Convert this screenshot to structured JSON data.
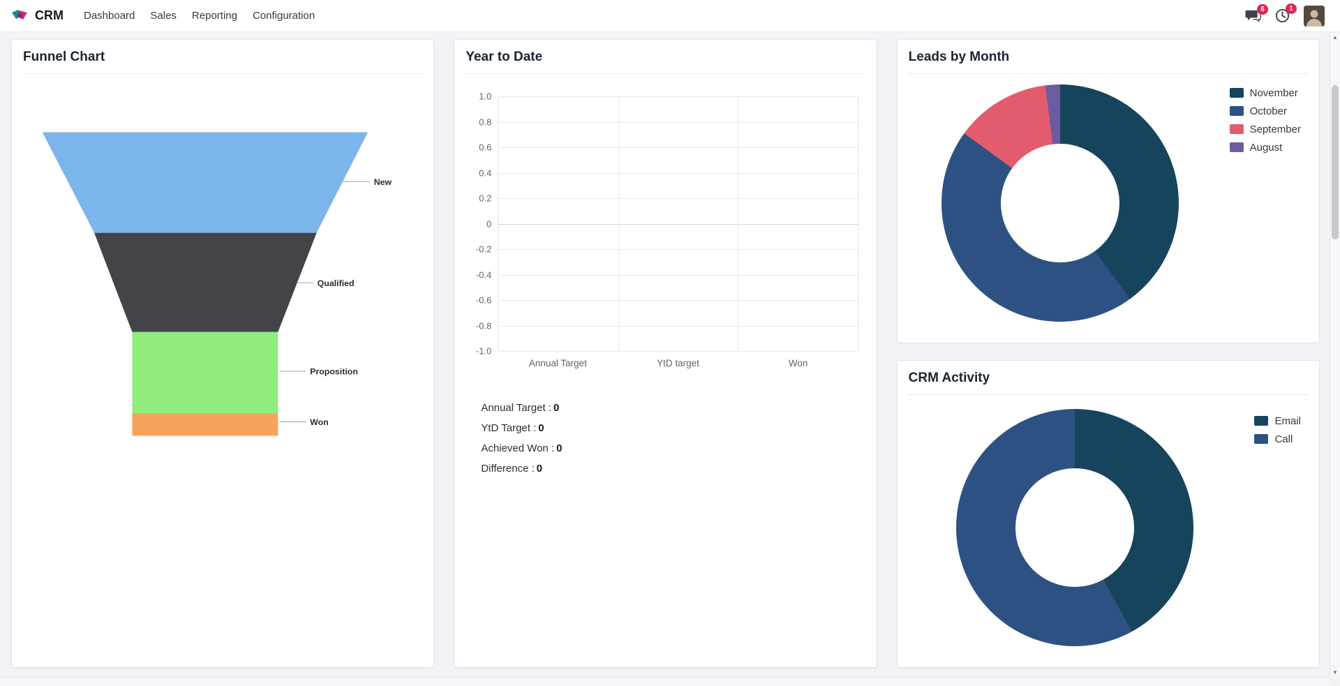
{
  "navbar": {
    "app_name": "CRM",
    "menu": [
      {
        "label": "Dashboard"
      },
      {
        "label": "Sales"
      },
      {
        "label": "Reporting"
      },
      {
        "label": "Configuration"
      }
    ],
    "messages_badge": "6",
    "activities_badge": "1"
  },
  "cards": {
    "funnel": {
      "title": "Funnel Chart",
      "stages": [
        {
          "label": "New",
          "color": "#7cb5ec"
        },
        {
          "label": "Qualified",
          "color": "#434348"
        },
        {
          "label": "Proposition",
          "color": "#90ed7d"
        },
        {
          "label": "Won",
          "color": "#f7a35c"
        }
      ]
    },
    "ytd": {
      "title": "Year to Date",
      "y_ticks": [
        "1.0",
        "0.8",
        "0.6",
        "0.4",
        "0.2",
        "0",
        "-0.2",
        "-0.4",
        "-0.6",
        "-0.8",
        "-1.0"
      ],
      "categories": [
        "Annual Target",
        "YtD target",
        "Won"
      ],
      "stats": [
        {
          "label": "Annual Target :",
          "value": "0"
        },
        {
          "label": "YtD Target :",
          "value": "0"
        },
        {
          "label": "Achieved Won :",
          "value": "0"
        },
        {
          "label": "Difference :",
          "value": "0"
        }
      ]
    },
    "leads": {
      "title": "Leads by Month",
      "slices": [
        {
          "label": "November",
          "value": 40,
          "color": "#17445d"
        },
        {
          "label": "October",
          "value": 45,
          "color": "#2d5183"
        },
        {
          "label": "September",
          "value": 13,
          "color": "#e25c6e"
        },
        {
          "label": "August",
          "value": 2,
          "color": "#6c5b9e"
        }
      ]
    },
    "activity": {
      "title": "CRM Activity",
      "slices": [
        {
          "label": "Email",
          "value": 42,
          "color": "#17445d"
        },
        {
          "label": "Call",
          "value": 58,
          "color": "#2d5183"
        }
      ]
    }
  },
  "chart_data": [
    {
      "type": "funnel",
      "title": "Funnel Chart",
      "categories": [
        "New",
        "Qualified",
        "Proposition",
        "Won"
      ],
      "colors": [
        "#7cb5ec",
        "#434348",
        "#90ed7d",
        "#f7a35c"
      ]
    },
    {
      "type": "bar",
      "title": "Year to Date",
      "categories": [
        "Annual Target",
        "YtD target",
        "Won"
      ],
      "values": [
        0,
        0,
        0
      ],
      "ylim": [
        -1.0,
        1.0
      ],
      "y_ticks": [
        1.0,
        0.8,
        0.6,
        0.4,
        0.2,
        0,
        -0.2,
        -0.4,
        -0.6,
        -0.8,
        -1.0
      ],
      "grid": true,
      "legend_position": "none"
    },
    {
      "type": "pie",
      "title": "Leads by Month",
      "categories": [
        "November",
        "October",
        "September",
        "August"
      ],
      "values": [
        40,
        45,
        13,
        2
      ],
      "colors": [
        "#17445d",
        "#2d5183",
        "#e25c6e",
        "#6c5b9e"
      ],
      "legend_position": "top-right"
    },
    {
      "type": "pie",
      "title": "CRM Activity",
      "categories": [
        "Email",
        "Call"
      ],
      "values": [
        42,
        58
      ],
      "colors": [
        "#17445d",
        "#2d5183"
      ],
      "legend_position": "top-right"
    }
  ]
}
